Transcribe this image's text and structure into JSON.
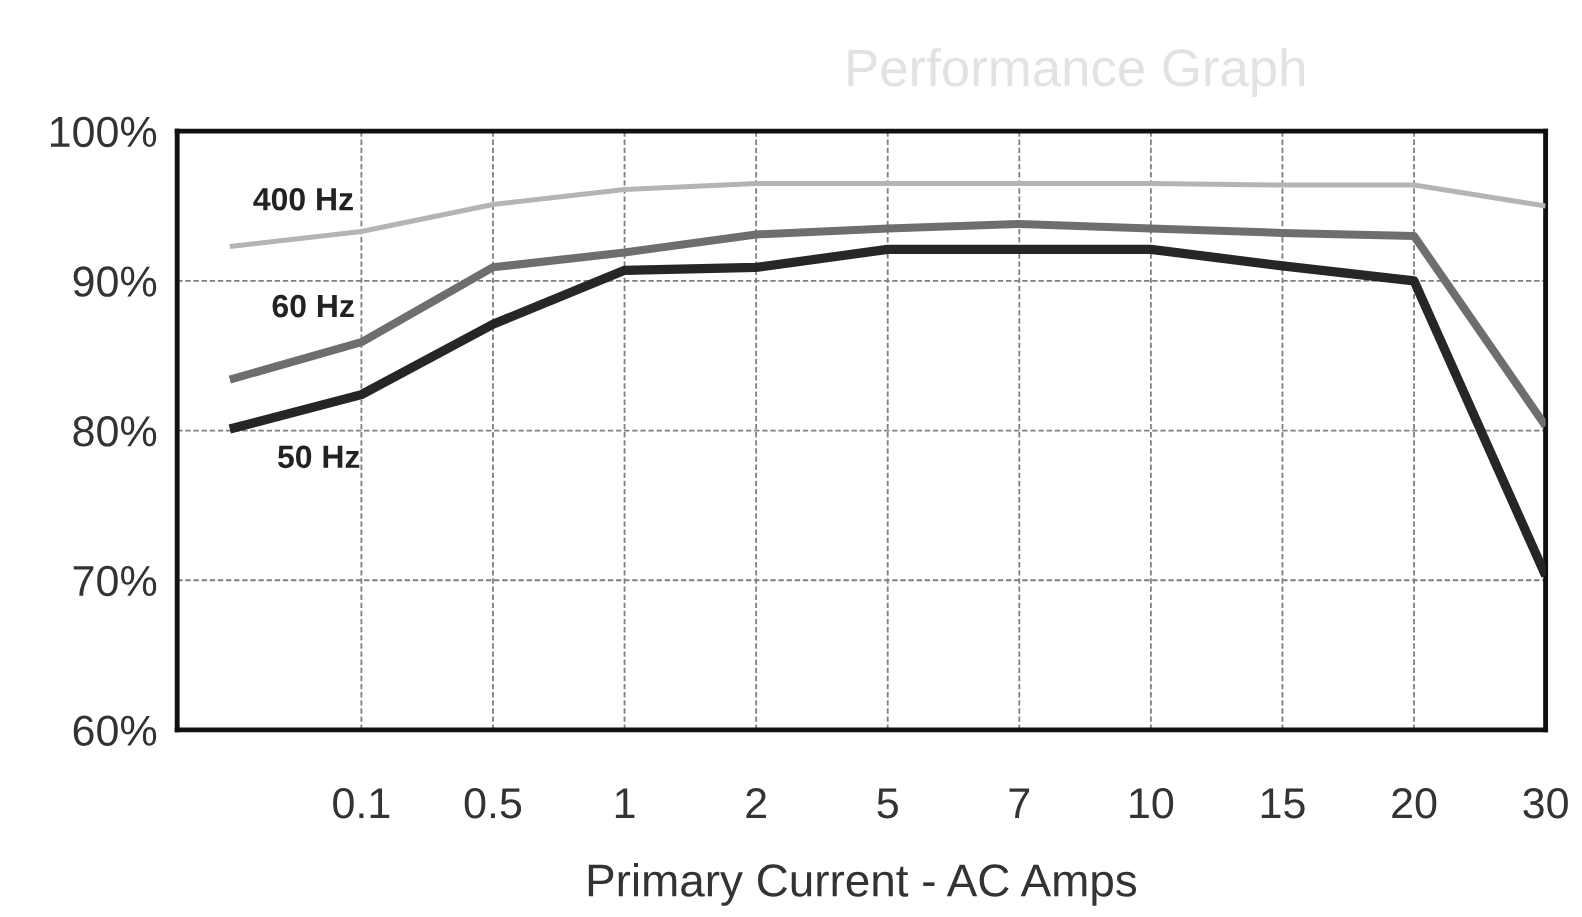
{
  "chart_data": {
    "type": "line",
    "title": "Performance Graph",
    "xlabel": "Primary Current - AC Amps",
    "categories": [
      null,
      "0.1",
      "0.5",
      "1",
      "2",
      "5",
      "7",
      "10",
      "15",
      "20",
      "30"
    ],
    "ylim": [
      60,
      100
    ],
    "yticks": [
      {
        "value": 60,
        "label": "60%"
      },
      {
        "value": 70,
        "label": "70%"
      },
      {
        "value": 80,
        "label": "80%"
      },
      {
        "value": 90,
        "label": "90%"
      },
      {
        "value": 100,
        "label": "100%"
      }
    ],
    "grid": true,
    "line_style": "solid",
    "series": [
      {
        "name": "400 Hz",
        "color": "#b4b4b4",
        "values": [
          92.3,
          93.3,
          95.1,
          96.1,
          96.5,
          96.5,
          96.5,
          96.5,
          96.4,
          96.4,
          95.0
        ]
      },
      {
        "name": "60 Hz",
        "color": "#6e6e6e",
        "values": [
          83.4,
          85.9,
          90.9,
          91.9,
          93.1,
          93.5,
          93.8,
          93.5,
          93.2,
          93.0,
          80.3
        ]
      },
      {
        "name": "50 Hz",
        "color": "#262626",
        "values": [
          80.1,
          82.4,
          87.1,
          90.7,
          90.9,
          92.1,
          92.1,
          92.1,
          91.0,
          90.0,
          70.3
        ]
      }
    ]
  }
}
